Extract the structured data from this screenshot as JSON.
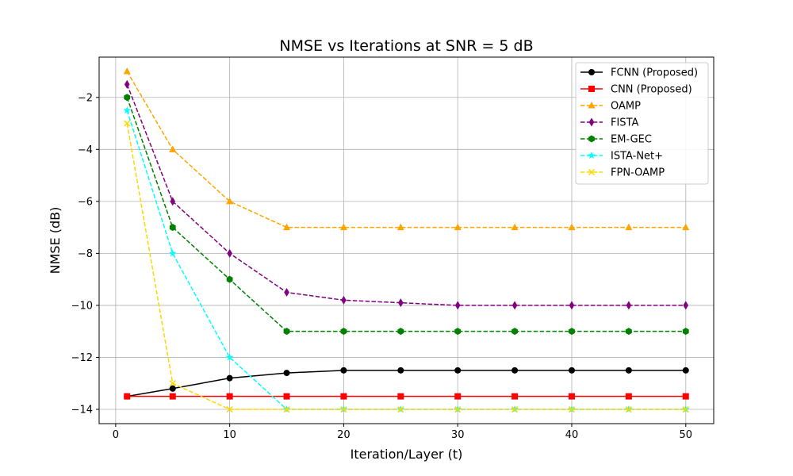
{
  "chart_data": {
    "type": "line",
    "title": "NMSE vs Iterations at SNR = 5 dB",
    "xlabel": "Iteration/Layer (t)",
    "ylabel": "NMSE (dB)",
    "xlim": [
      -1.45,
      52.45
    ],
    "ylim": [
      -14.55,
      -0.45
    ],
    "xticks": [
      0,
      10,
      20,
      30,
      40,
      50
    ],
    "yticks": [
      -14,
      -12,
      -10,
      -8,
      -6,
      -4,
      -2
    ],
    "grid": true,
    "legend_position": "top-right",
    "x": [
      1,
      5,
      10,
      15,
      20,
      25,
      30,
      35,
      40,
      45,
      50
    ],
    "series": [
      {
        "name": "FCNN (Proposed)",
        "color": "#000000",
        "dash": "solid",
        "marker": "circle",
        "values": [
          -13.5,
          -13.2,
          -12.8,
          -12.6,
          -12.5,
          -12.5,
          -12.5,
          -12.5,
          -12.5,
          -12.5,
          -12.5
        ]
      },
      {
        "name": "CNN (Proposed)",
        "color": "#ff0000",
        "dash": "solid",
        "marker": "square",
        "values": [
          -13.5,
          -13.5,
          -13.5,
          -13.5,
          -13.5,
          -13.5,
          -13.5,
          -13.5,
          -13.5,
          -13.5,
          -13.5
        ]
      },
      {
        "name": "OAMP",
        "color": "#ffa500",
        "dash": "dashed",
        "marker": "triangle",
        "values": [
          -1.0,
          -4.0,
          -6.0,
          -7.0,
          -7.0,
          -7.0,
          -7.0,
          -7.0,
          -7.0,
          -7.0,
          -7.0
        ]
      },
      {
        "name": "FISTA",
        "color": "#800080",
        "dash": "dashed",
        "marker": "thin-diamond",
        "values": [
          -1.5,
          -6.0,
          -8.0,
          -9.5,
          -9.8,
          -9.9,
          -10.0,
          -10.0,
          -10.0,
          -10.0,
          -10.0
        ]
      },
      {
        "name": "EM-GEC",
        "color": "#008000",
        "dash": "dashed",
        "marker": "hexagon",
        "values": [
          -2.0,
          -7.0,
          -9.0,
          -11.0,
          -11.0,
          -11.0,
          -11.0,
          -11.0,
          -11.0,
          -11.0,
          -11.0
        ]
      },
      {
        "name": "ISTA-Net+",
        "color": "#00ffff",
        "dash": "dashed",
        "marker": "star",
        "values": [
          -2.5,
          -8.0,
          -12.0,
          -14.0,
          -14.0,
          -14.0,
          -14.0,
          -14.0,
          -14.0,
          -14.0,
          -14.0
        ]
      },
      {
        "name": "FPN-OAMP",
        "color": "#ffd700",
        "dash": "dashed",
        "marker": "x",
        "values": [
          -3.0,
          -13.0,
          -14.0,
          -14.0,
          -14.0,
          -14.0,
          -14.0,
          -14.0,
          -14.0,
          -14.0,
          -14.0
        ]
      }
    ]
  }
}
